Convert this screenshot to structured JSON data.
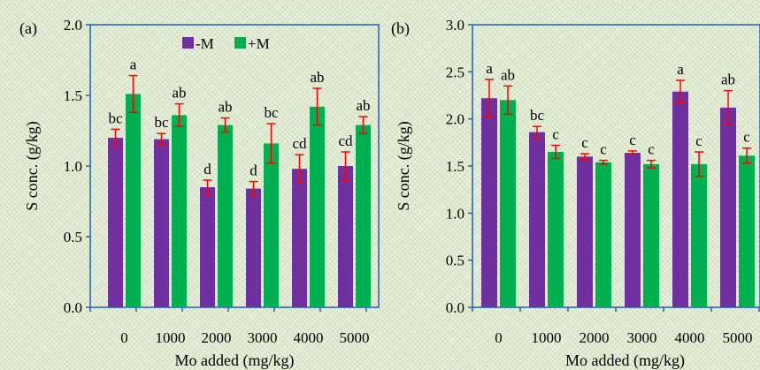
{
  "chart_data": [
    {
      "type": "bar",
      "panel_label": "(a)",
      "categories": [
        "0",
        "1000",
        "2000",
        "3000",
        "4000",
        "5000"
      ],
      "series": [
        {
          "name": "-M",
          "color": "#7030a0",
          "values": [
            1.2,
            1.19,
            0.85,
            0.84,
            0.98,
            1.0
          ],
          "errors": [
            0.06,
            0.04,
            0.05,
            0.05,
            0.1,
            0.1
          ],
          "letters": [
            "bc",
            "bc",
            "d",
            "d",
            "cd",
            "cd"
          ]
        },
        {
          "name": "+M",
          "color": "#00b050",
          "values": [
            1.51,
            1.36,
            1.29,
            1.16,
            1.42,
            1.29
          ],
          "errors": [
            0.13,
            0.08,
            0.05,
            0.14,
            0.13,
            0.06
          ],
          "letters": [
            "a",
            "ab",
            "ab",
            "bc",
            "ab",
            "ab"
          ]
        }
      ],
      "xlabel": "Mo added (mg/kg)",
      "ylabel": "S conc. (g/kg)",
      "ylim": [
        0,
        2.0
      ],
      "yticks": [
        "0.0",
        "0.5",
        "1.0",
        "1.5",
        "2.0"
      ],
      "legend": "top-center",
      "error_color": "#ff0000",
      "grid": false
    },
    {
      "type": "bar",
      "panel_label": "(b)",
      "categories": [
        "0",
        "1000",
        "2000",
        "3000",
        "4000",
        "5000"
      ],
      "series": [
        {
          "name": "-M",
          "color": "#7030a0",
          "values": [
            2.22,
            1.86,
            1.6,
            1.64,
            2.29,
            2.12
          ],
          "errors": [
            0.2,
            0.06,
            0.03,
            0.02,
            0.12,
            0.18
          ],
          "letters": [
            "a",
            "bc",
            "c",
            "c",
            "a",
            "ab"
          ]
        },
        {
          "name": "+M",
          "color": "#00b050",
          "values": [
            2.2,
            1.65,
            1.54,
            1.52,
            1.52,
            1.61
          ],
          "errors": [
            0.15,
            0.07,
            0.02,
            0.04,
            0.13,
            0.08
          ],
          "letters": [
            "ab",
            "c",
            "c",
            "c",
            "c",
            "c"
          ]
        }
      ],
      "xlabel": "Mo added (mg/kg)",
      "ylabel": "S conc. (g/kg)",
      "ylim": [
        0,
        3.0
      ],
      "yticks": [
        "0.0",
        "0.5",
        "1.0",
        "1.5",
        "2.0",
        "2.5",
        "3.0"
      ],
      "error_color": "#ff0000",
      "grid": false
    }
  ]
}
